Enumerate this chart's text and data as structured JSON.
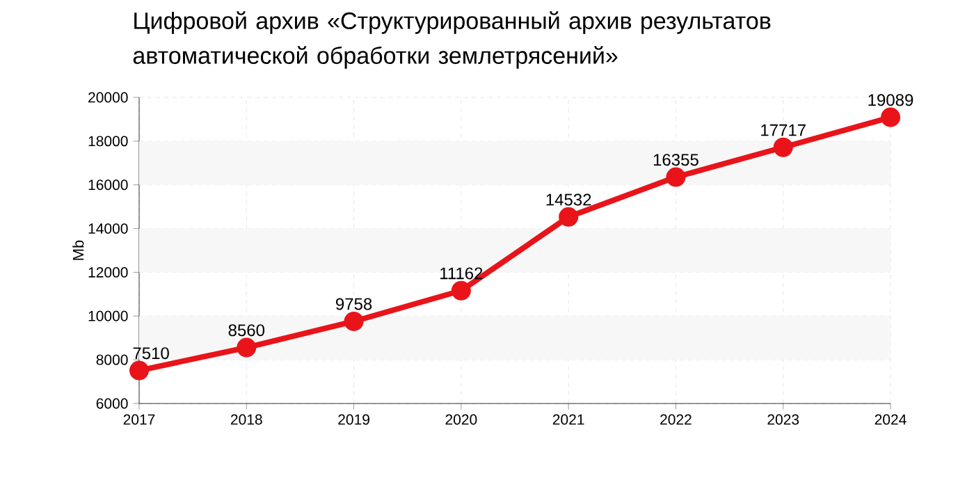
{
  "chart_data": {
    "type": "line",
    "title": "Цифровой архив «Структурированный архив результатов автоматической обработки землетрясений»",
    "ylabel": "Mb",
    "categories": [
      "2017",
      "2018",
      "2019",
      "2020",
      "2021",
      "2022",
      "2023",
      "2024"
    ],
    "values": [
      7510,
      8560,
      9758,
      11162,
      14532,
      16355,
      17717,
      19089
    ],
    "color": "#e8141a",
    "ylim": [
      6000,
      20000
    ],
    "yticks": [
      6000,
      8000,
      10000,
      12000,
      14000,
      16000,
      18000,
      20000
    ],
    "grid": true,
    "marker": "circle",
    "line_style": "solid",
    "data_labels": true,
    "bands": [
      {
        "axis": "y",
        "from": 8000,
        "to": 10000,
        "color": "#f7f7f7"
      },
      {
        "axis": "y",
        "from": 12000,
        "to": 14000,
        "color": "#f7f7f7"
      },
      {
        "axis": "y",
        "from": 16000,
        "to": 18000,
        "color": "#f7f7f7"
      }
    ]
  }
}
